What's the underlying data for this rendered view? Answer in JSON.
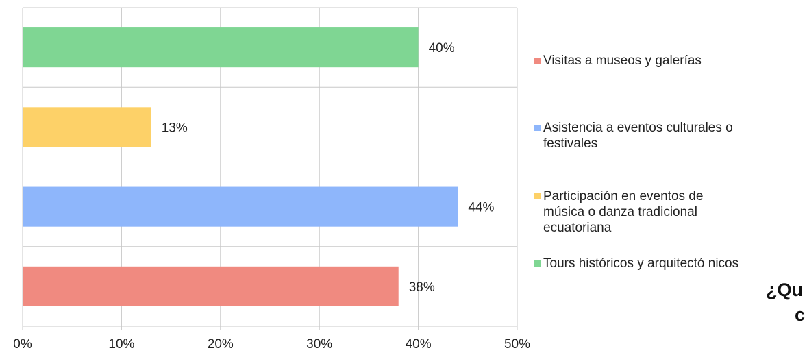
{
  "chart_data": {
    "type": "bar",
    "orientation": "horizontal",
    "categories": [
      "Tours históricos y arquitectó nicos",
      "Participación en eventos de música o danza tradicional ecuatoriana",
      "Asistencia a eventos culturales o festivales",
      "Visitas a museos y galerías"
    ],
    "values": [
      40,
      13,
      44,
      38
    ],
    "data_labels": [
      "40%",
      "13%",
      "44%",
      "38%"
    ],
    "colors": [
      "#7fd693",
      "#fdd168",
      "#8eb6fb",
      "#f08a80"
    ],
    "xlim": [
      0,
      50
    ],
    "xticks": [
      "0%",
      "10%",
      "20%",
      "30%",
      "40%",
      "50%"
    ],
    "grid": true,
    "legend_placement": "right",
    "legend": [
      {
        "label": "Visitas a museos y galerías",
        "color": "#f08a80"
      },
      {
        "label": "Asistencia a eventos culturales o\nfestivales",
        "color": "#8eb6fb"
      },
      {
        "label": "Participación en eventos de\nmúsica o danza tradicional\necuatoriana",
        "color": "#fdd168"
      },
      {
        "label": "Tours históricos y arquitectó nicos",
        "color": "#7fd693"
      }
    ],
    "cut_title_lines": [
      "¿Qu",
      "c"
    ]
  }
}
